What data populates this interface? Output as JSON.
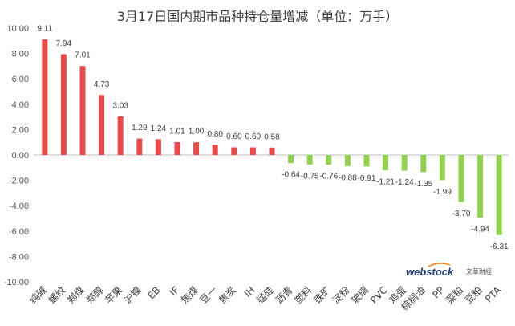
{
  "chart_data": {
    "type": "bar",
    "title": "3月17日国内期市品种持仓量增减（单位：万手）",
    "categories": [
      "纯碱",
      "螺纹",
      "郑煤",
      "郑醇",
      "苹果",
      "沪镍",
      "EB",
      "IF",
      "焦煤",
      "豆一",
      "焦炭",
      "IH",
      "锰硅",
      "沥青",
      "塑料",
      "铁矿",
      "淀粉",
      "玻璃",
      "PVC",
      "鸡蛋",
      "棕榈油",
      "PP",
      "菜粕",
      "豆粕",
      "PTA"
    ],
    "values": [
      9.11,
      7.94,
      7.01,
      4.73,
      3.03,
      1.29,
      1.24,
      1.01,
      1.0,
      0.8,
      0.6,
      0.6,
      0.58,
      -0.64,
      -0.75,
      -0.76,
      -0.88,
      -0.91,
      -1.21,
      -1.24,
      -1.35,
      -1.99,
      -3.7,
      -4.94,
      -6.31
    ],
    "ylim": [
      -10.0,
      10.0
    ],
    "yticks": [
      10.0,
      8.0,
      6.0,
      4.0,
      2.0,
      0.0,
      -2.0,
      -4.0,
      -6.0,
      -8.0,
      -10.0
    ],
    "grid": false,
    "legend": "none",
    "colors": {
      "positive": "#e84a4c",
      "negative": "#92d050",
      "zero_line": "#bfbfbf"
    }
  },
  "watermark": {
    "logo": "webstock",
    "brand": "文華財經"
  }
}
